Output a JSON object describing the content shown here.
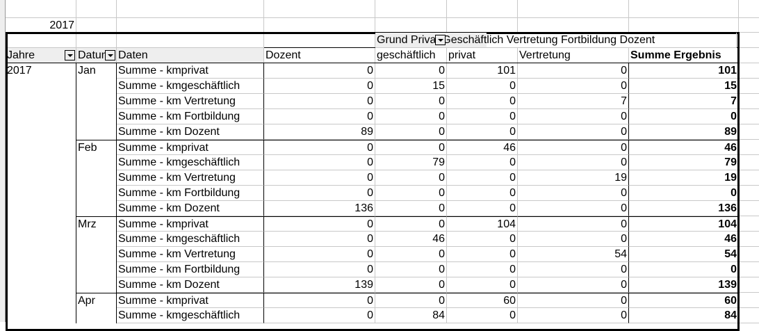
{
  "year_cell": "2017",
  "column_field": {
    "label": "Grund Privat Geschäftlich Vertretung Fortbildung Dozent"
  },
  "row_headers": [
    "Jahre",
    "Datum",
    "Daten"
  ],
  "column_headers": [
    "Dozent",
    "geschäftlich",
    "privat",
    "Vertretung",
    "Summe Ergebnis"
  ],
  "year": "2017",
  "months": [
    {
      "name": "Jan",
      "rows": [
        {
          "label": "Summe - kmprivat",
          "values": [
            0,
            0,
            101,
            0
          ],
          "total": 101
        },
        {
          "label": "Summe - kmgeschäftlich",
          "values": [
            0,
            15,
            0,
            0
          ],
          "total": 15
        },
        {
          "label": "Summe - km Vertretung",
          "values": [
            0,
            0,
            0,
            7
          ],
          "total": 7
        },
        {
          "label": "Summe - km Fortbildung",
          "values": [
            0,
            0,
            0,
            0
          ],
          "total": 0
        },
        {
          "label": "Summe - km Dozent",
          "values": [
            89,
            0,
            0,
            0
          ],
          "total": 89
        }
      ]
    },
    {
      "name": "Feb",
      "rows": [
        {
          "label": "Summe - kmprivat",
          "values": [
            0,
            0,
            46,
            0
          ],
          "total": 46
        },
        {
          "label": "Summe - kmgeschäftlich",
          "values": [
            0,
            79,
            0,
            0
          ],
          "total": 79
        },
        {
          "label": "Summe - km Vertretung",
          "values": [
            0,
            0,
            0,
            19
          ],
          "total": 19
        },
        {
          "label": "Summe - km Fortbildung",
          "values": [
            0,
            0,
            0,
            0
          ],
          "total": 0
        },
        {
          "label": "Summe - km Dozent",
          "values": [
            136,
            0,
            0,
            0
          ],
          "total": 136
        }
      ]
    },
    {
      "name": "Mrz",
      "rows": [
        {
          "label": "Summe - kmprivat",
          "values": [
            0,
            0,
            104,
            0
          ],
          "total": 104
        },
        {
          "label": "Summe - kmgeschäftlich",
          "values": [
            0,
            46,
            0,
            0
          ],
          "total": 46
        },
        {
          "label": "Summe - km Vertretung",
          "values": [
            0,
            0,
            0,
            54
          ],
          "total": 54
        },
        {
          "label": "Summe - km Fortbildung",
          "values": [
            0,
            0,
            0,
            0
          ],
          "total": 0
        },
        {
          "label": "Summe - km Dozent",
          "values": [
            139,
            0,
            0,
            0
          ],
          "total": 139
        }
      ]
    },
    {
      "name": "Apr",
      "rows": [
        {
          "label": "Summe - kmprivat",
          "values": [
            0,
            0,
            60,
            0
          ],
          "total": 60
        },
        {
          "label": "Summe - kmgeschäftlich",
          "values": [
            0,
            84,
            0,
            0
          ],
          "total": 84
        }
      ]
    }
  ]
}
